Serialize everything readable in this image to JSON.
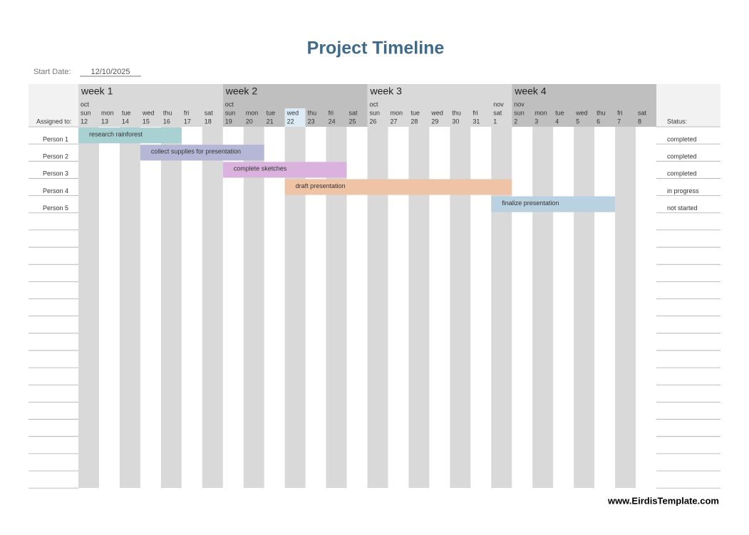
{
  "header": {
    "title": "Project Timeline",
    "start_date_label": "Start Date:",
    "start_date": "12/10/2025"
  },
  "assigned_label": "Assigned to:",
  "status_label": "Status:",
  "weeks": [
    {
      "label": "week 1",
      "days": [
        {
          "month": "oct",
          "name": "sun",
          "num": "12"
        },
        {
          "month": null,
          "name": "mon",
          "num": "13"
        },
        {
          "month": null,
          "name": "tue",
          "num": "14"
        },
        {
          "month": null,
          "name": "wed",
          "num": "15"
        },
        {
          "month": null,
          "name": "thu",
          "num": "16"
        },
        {
          "month": null,
          "name": "fri",
          "num": "17"
        },
        {
          "month": null,
          "name": "sat",
          "num": "18"
        }
      ]
    },
    {
      "label": "week 2",
      "days": [
        {
          "month": "oct",
          "name": "sun",
          "num": "19"
        },
        {
          "month": null,
          "name": "mon",
          "num": "20"
        },
        {
          "month": null,
          "name": "tue",
          "num": "21"
        },
        {
          "month": null,
          "name": "wed",
          "num": "22"
        },
        {
          "month": null,
          "name": "thu",
          "num": "23"
        },
        {
          "month": null,
          "name": "fri",
          "num": "24"
        },
        {
          "month": null,
          "name": "sat",
          "num": "25"
        }
      ]
    },
    {
      "label": "week 3",
      "days": [
        {
          "month": "oct",
          "name": "sun",
          "num": "26"
        },
        {
          "month": null,
          "name": "mon",
          "num": "27"
        },
        {
          "month": null,
          "name": "tue",
          "num": "28"
        },
        {
          "month": null,
          "name": "wed",
          "num": "29"
        },
        {
          "month": null,
          "name": "thu",
          "num": "30"
        },
        {
          "month": null,
          "name": "fri",
          "num": "31"
        },
        {
          "month": "nov",
          "name": "sat",
          "num": "1"
        }
      ]
    },
    {
      "label": "week 4",
      "days": [
        {
          "month": "nov",
          "name": "sun",
          "num": "2"
        },
        {
          "month": null,
          "name": "mon",
          "num": "3"
        },
        {
          "month": null,
          "name": "tue",
          "num": "4"
        },
        {
          "month": null,
          "name": "wed",
          "num": "5"
        },
        {
          "month": null,
          "name": "thu",
          "num": "6"
        },
        {
          "month": null,
          "name": "fri",
          "num": "7"
        },
        {
          "month": null,
          "name": "sat",
          "num": "8"
        }
      ]
    }
  ],
  "tasks": [
    {
      "person": "Person 1",
      "task": "research rainforest",
      "status": "completed",
      "start": "12",
      "end": "16",
      "color": "#a9d0d3"
    },
    {
      "person": "Person 2",
      "task": "collect supplies for presentation",
      "status": "completed",
      "start": "15",
      "end": "20",
      "color": "#b4b8d6"
    },
    {
      "person": "Person 3",
      "task": "complete sketches",
      "status": "completed",
      "start": "19",
      "end": "24",
      "color": "#d9b3dd"
    },
    {
      "person": "Person 4",
      "task": "draft presentation",
      "status": "in progress",
      "start": "22",
      "end": "1",
      "color": "#efc4a6"
    },
    {
      "person": "Person 5",
      "task": "finalize presentation",
      "status": "not started",
      "start": "1",
      "end": "6",
      "color": "#b9d1e0"
    }
  ],
  "footer": "www.EirdisTemplate.com"
}
